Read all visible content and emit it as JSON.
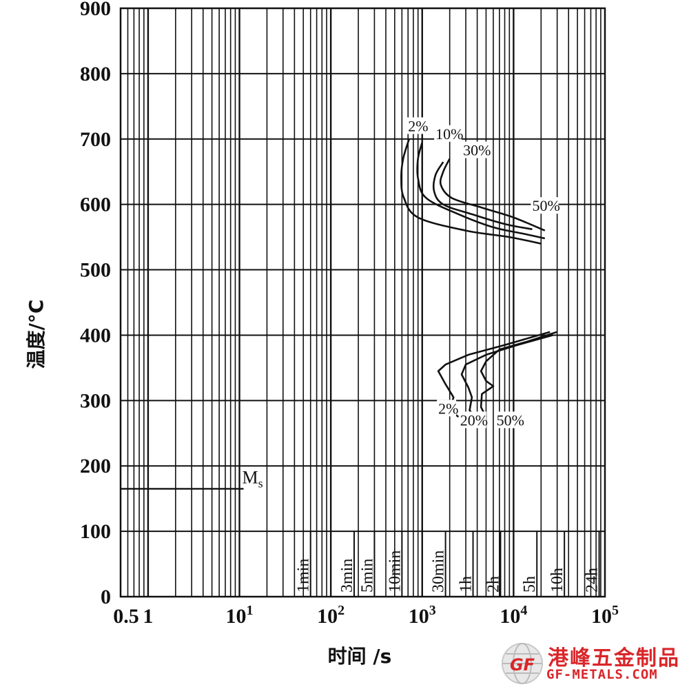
{
  "chart_data": {
    "type": "line",
    "xlabel": "时间 /s",
    "ylabel": "温度/°C",
    "xscale": "log",
    "xlim": [
      0.5,
      100000
    ],
    "ylim": [
      0,
      900
    ],
    "grid": true,
    "y_ticks": [
      {
        "value": 0,
        "label": "0"
      },
      {
        "value": 100,
        "label": "100"
      },
      {
        "value": 200,
        "label": "200"
      },
      {
        "value": 300,
        "label": "300"
      },
      {
        "value": 400,
        "label": "400"
      },
      {
        "value": 500,
        "label": "500"
      },
      {
        "value": 600,
        "label": "600"
      },
      {
        "value": 700,
        "label": "700"
      },
      {
        "value": 800,
        "label": "800"
      },
      {
        "value": 900,
        "label": "900"
      }
    ],
    "x_ticks": [
      {
        "value": 0.5,
        "label": "0.5"
      },
      {
        "value": 1,
        "label": "1"
      },
      {
        "value": 10,
        "base": "10",
        "exp": "1"
      },
      {
        "value": 100,
        "base": "10",
        "exp": "2"
      },
      {
        "value": 1000,
        "base": "10",
        "exp": "3"
      },
      {
        "value": 10000,
        "base": "10",
        "exp": "4"
      },
      {
        "value": 100000,
        "base": "10",
        "exp": "5"
      }
    ],
    "time_markers": [
      {
        "value": 60,
        "label": "1min"
      },
      {
        "value": 180,
        "label": "3min"
      },
      {
        "value": 300,
        "label": "5min"
      },
      {
        "value": 600,
        "label": "10min"
      },
      {
        "value": 1800,
        "label": "30min"
      },
      {
        "value": 3600,
        "label": "1h"
      },
      {
        "value": 7200,
        "label": "2h"
      },
      {
        "value": 18000,
        "label": "5h"
      },
      {
        "value": 36000,
        "label": "10h"
      },
      {
        "value": 86400,
        "label": "24h"
      }
    ],
    "ms": {
      "label": "M",
      "sub": "s",
      "temperature": 165,
      "x_start": 0.5,
      "x_end": 10
    },
    "pearlite_curves": [
      {
        "label": "2%",
        "label_at": [
          700,
          712
        ],
        "points": [
          [
            720,
            700
          ],
          [
            620,
            670
          ],
          [
            590,
            640
          ],
          [
            630,
            610
          ],
          [
            900,
            580
          ],
          [
            3000,
            560
          ],
          [
            9000,
            550
          ],
          [
            20000,
            540
          ]
        ]
      },
      {
        "label": "10%",
        "label_at": [
          1400,
          700
        ],
        "points": [
          [
            1000,
            695
          ],
          [
            900,
            670
          ],
          [
            900,
            640
          ],
          [
            1100,
            610
          ],
          [
            2500,
            585
          ],
          [
            6000,
            565
          ],
          [
            13000,
            555
          ],
          [
            22000,
            548
          ]
        ]
      },
      {
        "label": "30%",
        "label_at": [
          2800,
          675
        ],
        "points": [
          [
            1700,
            665
          ],
          [
            1400,
            645
          ],
          [
            1350,
            620
          ],
          [
            1700,
            600
          ],
          [
            3500,
            585
          ],
          [
            8000,
            570
          ],
          [
            16000,
            562
          ]
        ]
      },
      {
        "label": "50%",
        "label_at": [
          16000,
          590
        ],
        "points": [
          [
            2000,
            670
          ],
          [
            1700,
            650
          ],
          [
            1600,
            630
          ],
          [
            2100,
            610
          ],
          [
            4500,
            595
          ],
          [
            10000,
            580
          ],
          [
            22000,
            560
          ]
        ]
      }
    ],
    "bainite_curves": [
      {
        "label": "2%",
        "label_at": [
          1500,
          280
        ],
        "points": [
          [
            25000,
            405
          ],
          [
            8000,
            385
          ],
          [
            3200,
            370
          ],
          [
            1800,
            355
          ],
          [
            1500,
            345
          ],
          [
            1800,
            325
          ],
          [
            2200,
            305
          ],
          [
            2000,
            285
          ],
          [
            2500,
            275
          ]
        ]
      },
      {
        "label": "20%",
        "label_at": [
          2600,
          262
        ],
        "points": [
          [
            27000,
            400
          ],
          [
            11000,
            385
          ],
          [
            5000,
            370
          ],
          [
            3000,
            355
          ],
          [
            2700,
            340
          ],
          [
            3200,
            320
          ],
          [
            3500,
            305
          ],
          [
            3300,
            285
          ],
          [
            3800,
            275
          ]
        ]
      },
      {
        "label": "50%",
        "label_at": [
          6500,
          262
        ],
        "points": [
          [
            30000,
            405
          ],
          [
            14000,
            390
          ],
          [
            7000,
            378
          ],
          [
            5000,
            360
          ],
          [
            4400,
            345
          ],
          [
            5000,
            330
          ],
          [
            6000,
            322
          ],
          [
            4500,
            310
          ],
          [
            4400,
            290
          ],
          [
            5000,
            275
          ]
        ]
      }
    ]
  },
  "watermark": {
    "cn": "港峰五金制品",
    "en": "GF-METALS.COM",
    "logo_text": "GF"
  }
}
